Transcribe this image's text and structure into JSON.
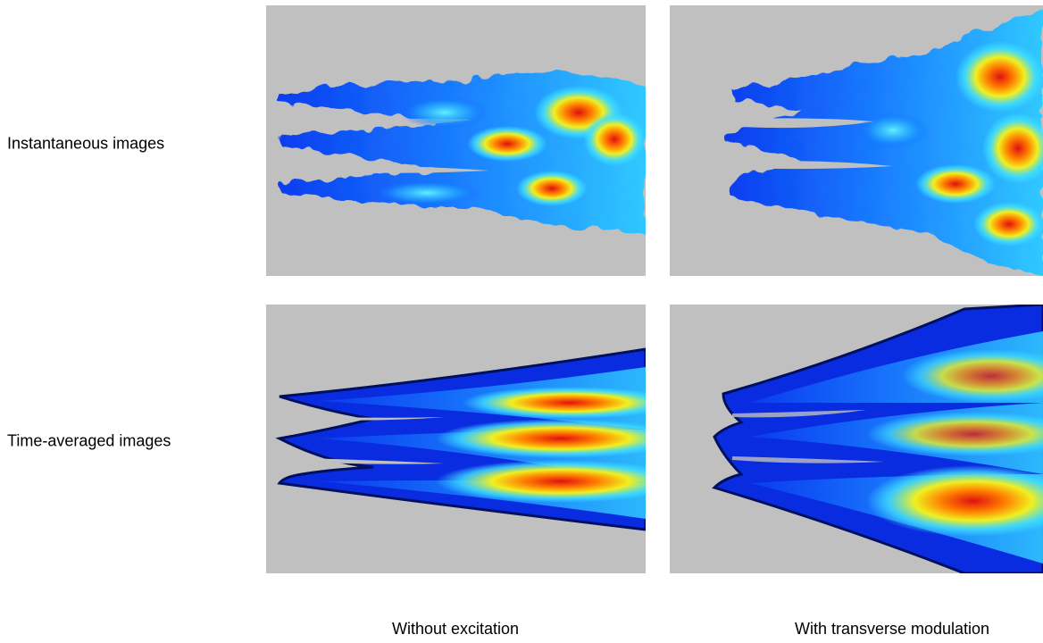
{
  "row_labels": [
    "Instantaneous images",
    "Time-averaged images"
  ],
  "column_labels": [
    "Without excitation",
    "With transverse modulation"
  ]
}
